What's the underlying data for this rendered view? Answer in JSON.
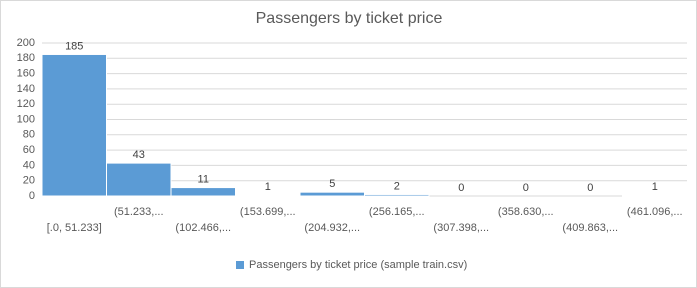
{
  "chart_data": {
    "type": "bar",
    "title": "Passengers by ticket price",
    "categories": [
      "[.0, 51.233]",
      "(51.233,...",
      "(102.466,...",
      "(153.699,...",
      "(204.932,...",
      "(256.165,...",
      "(307.398,...",
      "(358.630,...",
      "(409.863,...",
      "(461.096,..."
    ],
    "series": [
      {
        "name": "Passengers by ticket price (sample train.csv)",
        "color": "#5b9bd5",
        "values": [
          185,
          43,
          11,
          1,
          5,
          2,
          0,
          0,
          0,
          1
        ]
      }
    ],
    "ylim": [
      0,
      200
    ],
    "yticks": [
      0,
      20,
      40,
      60,
      80,
      100,
      120,
      140,
      160,
      180,
      200
    ],
    "grid": true,
    "legend": "bottom"
  }
}
